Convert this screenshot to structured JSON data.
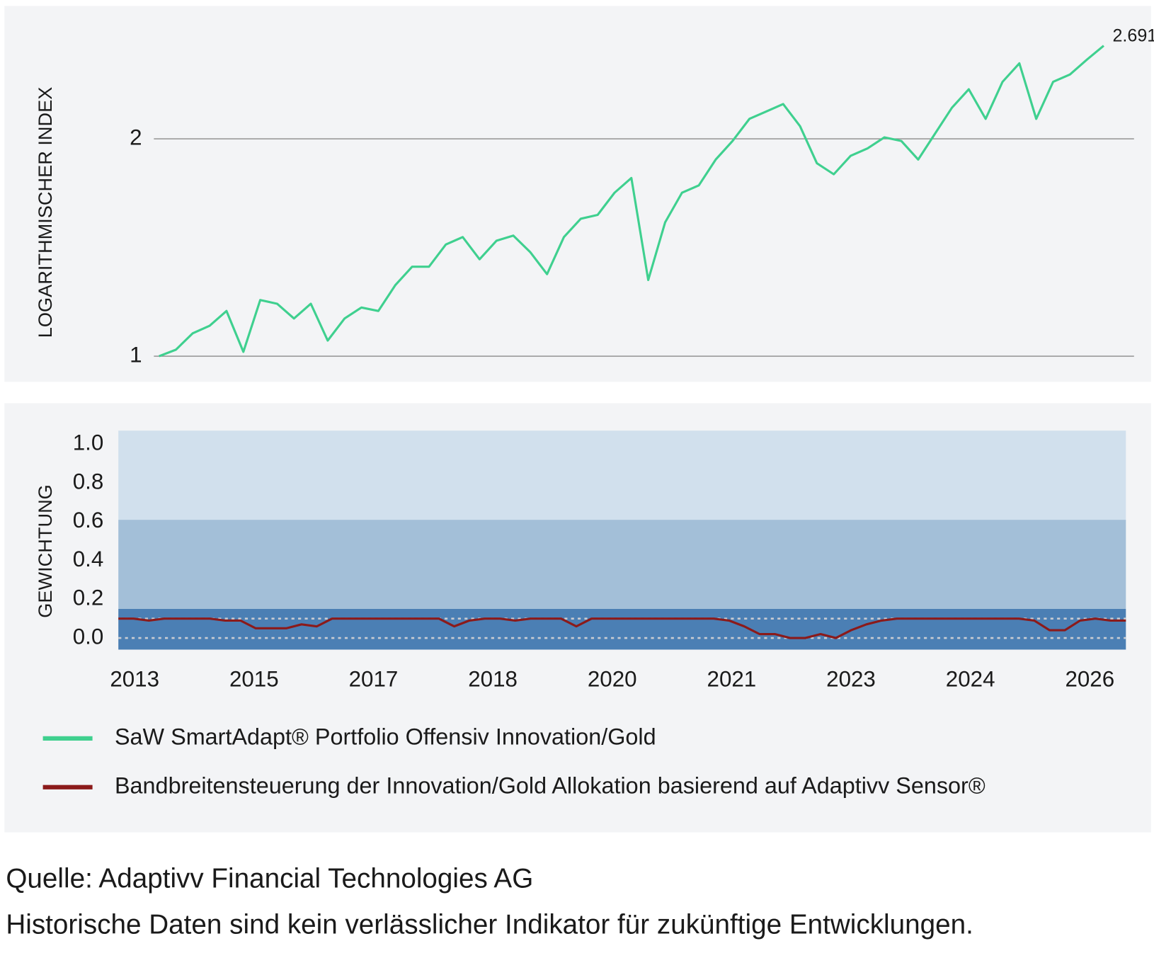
{
  "chart_data": [
    {
      "type": "line",
      "y_label": "LOGARITHMISCHER INDEX",
      "log_scale": true,
      "grid": true,
      "ylim": [
        0.98,
        2.9
      ],
      "yticks": [
        1,
        2
      ],
      "series": [
        {
          "name": "SaW SmartAdapt® Portfolio Offensiv Innovation/Gold",
          "color": "#3fd08f",
          "values": [
            1.0,
            1.021,
            1.076,
            1.102,
            1.155,
            1.014,
            1.196,
            1.182,
            1.128,
            1.182,
            1.051,
            1.128,
            1.168,
            1.155,
            1.254,
            1.33,
            1.33,
            1.428,
            1.462,
            1.362,
            1.445,
            1.469,
            1.394,
            1.299,
            1.462,
            1.55,
            1.569,
            1.684,
            1.765,
            1.275,
            1.532,
            1.684,
            1.724,
            1.872,
            1.986,
            2.131,
            2.182,
            2.234,
            2.082,
            1.85,
            1.786,
            1.894,
            1.94,
            2.009,
            1.986,
            1.872,
            2.033,
            2.208,
            2.342,
            2.131,
            2.398,
            2.544,
            2.131,
            2.398,
            2.455,
            2.574,
            2.691
          ]
        }
      ]
    },
    {
      "type": "area_line",
      "y_label": "GEWICHTUNG",
      "ylim": [
        -0.06,
        1.07
      ],
      "yticks": [
        {
          "value": 0.0,
          "label": "0.0"
        },
        0.2,
        0.4,
        0.6,
        0.8,
        {
          "value": 1.0,
          "label": "1.0"
        }
      ],
      "bands": [
        {
          "color": "#4b7fb4",
          "upper": 0.15
        },
        {
          "color": "#a3bfd8",
          "upper": 0.61
        },
        {
          "color": "#d1e0ed",
          "upper": 1.07
        }
      ],
      "hlines": [
        0.0,
        0.1
      ],
      "xtick_labels": [
        "2013",
        "2015",
        "2017",
        "2018",
        "2020",
        "2021",
        "2023",
        "2024",
        "2026"
      ],
      "series": [
        {
          "name": "Bandbreitensteuerung der Innovation/Gold Allokation basierend auf Adaptivv Sensor®",
          "color": "#8b1a1a",
          "values": [
            0.1,
            0.1,
            0.09,
            0.1,
            0.1,
            0.1,
            0.1,
            0.09,
            0.09,
            0.05,
            0.05,
            0.05,
            0.07,
            0.06,
            0.1,
            0.1,
            0.1,
            0.1,
            0.1,
            0.1,
            0.1,
            0.1,
            0.06,
            0.09,
            0.1,
            0.1,
            0.09,
            0.1,
            0.1,
            0.1,
            0.06,
            0.1,
            0.1,
            0.1,
            0.1,
            0.1,
            0.1,
            0.1,
            0.1,
            0.1,
            0.09,
            0.06,
            0.02,
            0.02,
            0.0,
            0.0,
            0.02,
            0.0,
            0.04,
            0.07,
            0.09,
            0.1,
            0.1,
            0.1,
            0.1,
            0.1,
            0.1,
            0.1,
            0.1,
            0.1,
            0.09,
            0.04,
            0.04,
            0.09,
            0.1,
            0.09,
            0.09
          ]
        }
      ]
    }
  ],
  "footer": {
    "source": "Quelle: Adaptivv Financial Technologies AG",
    "note": "Historische Daten sind kein verlässlicher Indikator für zukünftige Entwicklungen."
  }
}
